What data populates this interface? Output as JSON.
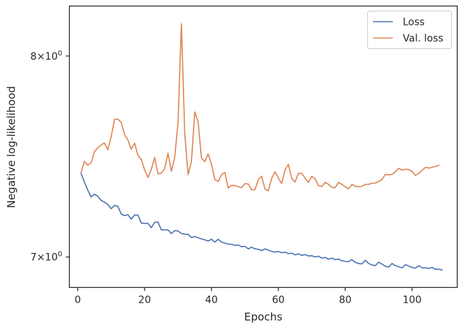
{
  "chart_data": {
    "type": "line",
    "xlabel": "Epochs",
    "ylabel": "Negative log-likelihood",
    "yscale": "log",
    "xlim": [
      -2.5,
      113.5
    ],
    "ylim": [
      6.86,
      8.27
    ],
    "xticks": [
      {
        "value": 0,
        "label": "0"
      },
      {
        "value": 20,
        "label": "20"
      },
      {
        "value": 40,
        "label": "40"
      },
      {
        "value": 60,
        "label": "60"
      },
      {
        "value": 80,
        "label": "80"
      },
      {
        "value": 100,
        "label": "100"
      }
    ],
    "yticks": [
      {
        "value": 7,
        "base": "7",
        "mult": "×",
        "pow": "10",
        "exp": "0"
      },
      {
        "value": 8,
        "base": "8",
        "mult": "×",
        "pow": "10",
        "exp": "0"
      }
    ],
    "grid": false,
    "legend": "top-right",
    "x_start": 1,
    "series": [
      {
        "name": "Loss",
        "color": "#4c72b0",
        "values": [
          7.4,
          7.357,
          7.318,
          7.285,
          7.298,
          7.289,
          7.268,
          7.26,
          7.248,
          7.228,
          7.244,
          7.24,
          7.203,
          7.195,
          7.2,
          7.178,
          7.198,
          7.198,
          7.16,
          7.158,
          7.158,
          7.138,
          7.163,
          7.165,
          7.127,
          7.127,
          7.127,
          7.11,
          7.124,
          7.122,
          7.11,
          7.107,
          7.106,
          7.091,
          7.096,
          7.09,
          7.085,
          7.08,
          7.075,
          7.083,
          7.07,
          7.083,
          7.07,
          7.065,
          7.06,
          7.06,
          7.054,
          7.056,
          7.048,
          7.05,
          7.038,
          7.046,
          7.038,
          7.036,
          7.03,
          7.038,
          7.032,
          7.026,
          7.023,
          7.026,
          7.02,
          7.023,
          7.016,
          7.018,
          7.01,
          7.015,
          7.008,
          7.011,
          7.005,
          7.006,
          7.0,
          7.004,
          6.995,
          6.998,
          6.99,
          6.995,
          6.988,
          6.99,
          6.983,
          6.98,
          6.978,
          6.988,
          6.975,
          6.97,
          6.968,
          6.985,
          6.97,
          6.963,
          6.96,
          6.976,
          6.967,
          6.957,
          6.954,
          6.97,
          6.96,
          6.955,
          6.95,
          6.965,
          6.958,
          6.952,
          6.948,
          6.96,
          6.95,
          6.95,
          6.947,
          6.952,
          6.943,
          6.944,
          6.94
        ]
      },
      {
        "name": "Val. loss",
        "color": "#dd8452",
        "values": [
          7.405,
          7.459,
          7.44,
          7.452,
          7.508,
          7.526,
          7.541,
          7.551,
          7.517,
          7.583,
          7.67,
          7.672,
          7.655,
          7.593,
          7.566,
          7.52,
          7.55,
          7.489,
          7.469,
          7.417,
          7.38,
          7.42,
          7.479,
          7.398,
          7.4,
          7.424,
          7.5,
          7.41,
          7.48,
          7.655,
          8.173,
          7.6,
          7.393,
          7.458,
          7.708,
          7.658,
          7.475,
          7.458,
          7.496,
          7.445,
          7.37,
          7.36,
          7.394,
          7.405,
          7.328,
          7.342,
          7.34,
          7.335,
          7.33,
          7.35,
          7.348,
          7.32,
          7.32,
          7.369,
          7.386,
          7.323,
          7.315,
          7.375,
          7.408,
          7.376,
          7.35,
          7.418,
          7.444,
          7.375,
          7.358,
          7.4,
          7.4,
          7.376,
          7.356,
          7.386,
          7.373,
          7.34,
          7.335,
          7.356,
          7.346,
          7.332,
          7.33,
          7.356,
          7.346,
          7.335,
          7.325,
          7.346,
          7.337,
          7.335,
          7.336,
          7.346,
          7.346,
          7.352,
          7.352,
          7.36,
          7.37,
          7.395,
          7.393,
          7.395,
          7.408,
          7.425,
          7.416,
          7.42,
          7.419,
          7.41,
          7.39,
          7.4,
          7.415,
          7.43,
          7.426,
          7.43,
          7.434,
          7.44
        ]
      }
    ]
  }
}
